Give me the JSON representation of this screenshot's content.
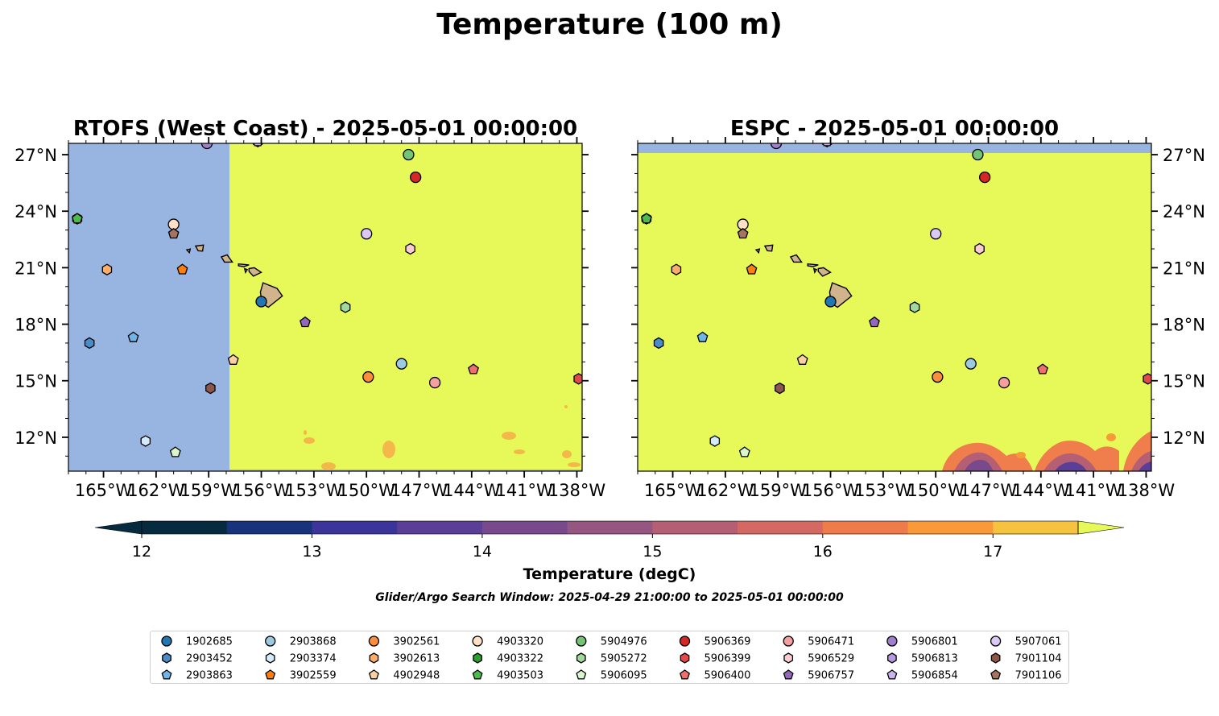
{
  "figure": {
    "title": "Temperature (100 m)",
    "colorbar_label": "Temperature (degC)",
    "search_window": "Glider/Argo Search Window: 2025-04-29 21:00:00 to 2025-05-01 00:00:00"
  },
  "chart_data": [
    {
      "type": "heatmap",
      "title": "RTOFS (West Coast) - 2025-05-01 00:00:00",
      "x_ticks": [
        "165°W",
        "162°W",
        "159°W",
        "156°W",
        "153°W",
        "150°W",
        "147°W",
        "144°W",
        "141°W",
        "138°W"
      ],
      "y_ticks": [
        "27°N",
        "24°N",
        "21°N",
        "18°N",
        "15°N",
        "12°N"
      ],
      "xlim": [
        -167,
        -137.7
      ],
      "ylim": [
        10.2,
        27.6
      ],
      "no_data_region_color": "#98b4e0",
      "field_color": "#e6f959",
      "description_value": ">17.5 degC over most of domain, west of 157.7°W no data"
    },
    {
      "type": "heatmap",
      "title": "ESPC - 2025-05-01 00:00:00",
      "x_ticks": [
        "165°W",
        "162°W",
        "159°W",
        "156°W",
        "153°W",
        "150°W",
        "147°W",
        "144°W",
        "141°W",
        "138°W"
      ],
      "y_ticks": [
        "27°N",
        "24°N",
        "21°N",
        "18°N",
        "15°N",
        "12°N"
      ],
      "xlim": [
        -167,
        -137.7
      ],
      "ylim": [
        10.2,
        27.6
      ],
      "field_color": "#e6f959"
    }
  ],
  "colorbar": {
    "ticks": [
      "12",
      "13",
      "14",
      "15",
      "16",
      "17"
    ],
    "tick_values": [
      12,
      13,
      14,
      15,
      16,
      17
    ],
    "range": [
      12,
      17.5
    ],
    "bins": [
      {
        "from": 12.0,
        "to": 12.5,
        "color": "#062b3f"
      },
      {
        "from": 12.5,
        "to": 13.0,
        "color": "#17337a"
      },
      {
        "from": 13.0,
        "to": 13.5,
        "color": "#3b3499"
      },
      {
        "from": 13.5,
        "to": 14.0,
        "color": "#5b3f96"
      },
      {
        "from": 14.0,
        "to": 14.5,
        "color": "#784a8c"
      },
      {
        "from": 14.5,
        "to": 15.0,
        "color": "#955681"
      },
      {
        "from": 15.0,
        "to": 15.5,
        "color": "#b45f73"
      },
      {
        "from": 15.5,
        "to": 16.0,
        "color": "#d46964"
      },
      {
        "from": 16.0,
        "to": 16.5,
        "color": "#ee7c4b"
      },
      {
        "from": 16.5,
        "to": 17.0,
        "color": "#f99a39"
      },
      {
        "from": 17.0,
        "to": 17.5,
        "color": "#f6c341"
      }
    ],
    "under_color": "#062b3f",
    "over_color": "#e6f959"
  },
  "floats": [
    {
      "id": "1902685",
      "color": "#1f77b4",
      "marker": "circle",
      "lon": -156.0,
      "lat": 19.2
    },
    {
      "id": "2903452",
      "color": "#4a8cc7",
      "marker": "hexagon",
      "lon": -165.8,
      "lat": 17.0
    },
    {
      "id": "2903863",
      "color": "#6fb5e8",
      "marker": "pentagon",
      "lon": -163.3,
      "lat": 17.3
    },
    {
      "id": "2903868",
      "color": "#9ecae1",
      "marker": "circle",
      "lon": -148.0,
      "lat": 15.9
    },
    {
      "id": "2903374",
      "color": "#d6ebfa",
      "marker": "hexagon",
      "lon": -162.6,
      "lat": 11.8
    },
    {
      "id": "3902559",
      "color": "#ff7f0e",
      "marker": "pentagon",
      "lon": -160.5,
      "lat": 20.9
    },
    {
      "id": "3902561",
      "color": "#fd8d3c",
      "marker": "circle",
      "lon": -149.9,
      "lat": 15.2
    },
    {
      "id": "3902613",
      "color": "#fdae6b",
      "marker": "hexagon",
      "lon": -164.8,
      "lat": 20.9
    },
    {
      "id": "4902948",
      "color": "#fdd0a2",
      "marker": "pentagon",
      "lon": -157.6,
      "lat": 16.1
    },
    {
      "id": "4903320",
      "color": "#fde0c5",
      "marker": "circle",
      "lon": -161.0,
      "lat": 23.3
    },
    {
      "id": "4903322",
      "color": "#2ca02c",
      "marker": "hexagon",
      "lon": -166.5,
      "lat": 23.6
    },
    {
      "id": "4903503",
      "color": "#4cbb4c",
      "marker": "pentagon",
      "lon": -166.5,
      "lat": 23.6
    },
    {
      "id": "5904976",
      "color": "#74c476",
      "marker": "circle",
      "lon": -147.6,
      "lat": 27.0
    },
    {
      "id": "5905272",
      "color": "#a1d99b",
      "marker": "hexagon",
      "lon": -151.2,
      "lat": 18.9
    },
    {
      "id": "5906095",
      "color": "#d9f7cc",
      "marker": "pentagon",
      "lon": -160.9,
      "lat": 11.2
    },
    {
      "id": "5906369",
      "color": "#d62728",
      "marker": "circle",
      "lon": -147.2,
      "lat": 25.8
    },
    {
      "id": "5906399",
      "color": "#e04a4a",
      "marker": "hexagon",
      "lon": -137.9,
      "lat": 15.1
    },
    {
      "id": "5906400",
      "color": "#ef6f6c",
      "marker": "pentagon",
      "lon": -143.9,
      "lat": 15.6
    },
    {
      "id": "5906471",
      "color": "#f4a0a0",
      "marker": "circle",
      "lon": -146.1,
      "lat": 14.9
    },
    {
      "id": "5906529",
      "color": "#fbcdd2",
      "marker": "hexagon",
      "lon": -147.5,
      "lat": 22.0
    },
    {
      "id": "5906757",
      "color": "#9467bd",
      "marker": "pentagon",
      "lon": -153.5,
      "lat": 18.1
    },
    {
      "id": "5906801",
      "color": "#a07fcc",
      "marker": "circle",
      "lon": -159.1,
      "lat": 27.6
    },
    {
      "id": "5906813",
      "color": "#b699de",
      "marker": "hexagon",
      "lon": -156.2,
      "lat": 27.7
    },
    {
      "id": "5906854",
      "color": "#cbb3f0",
      "marker": "pentagon",
      "lon": -156.2,
      "lat": 27.7
    },
    {
      "id": "5907061",
      "color": "#dcc8f5",
      "marker": "circle",
      "lon": -150.0,
      "lat": 22.8
    },
    {
      "id": "7901104",
      "color": "#8c564b",
      "marker": "hexagon",
      "lon": -158.9,
      "lat": 14.6
    },
    {
      "id": "7901106",
      "color": "#a57362",
      "marker": "pentagon",
      "lon": -161.0,
      "lat": 22.8
    }
  ]
}
